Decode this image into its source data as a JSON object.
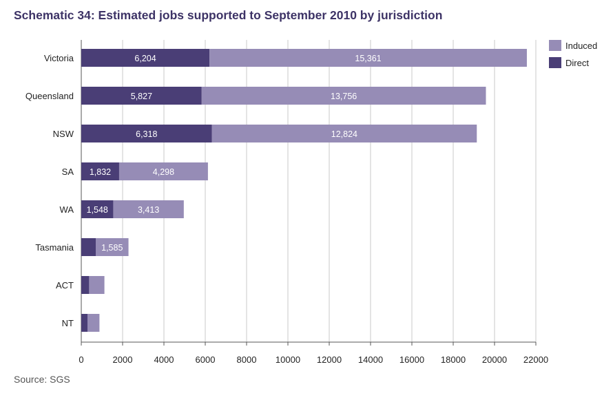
{
  "title": "Schematic 34: Estimated jobs supported to September 2010 by jurisdiction",
  "source": "Source: SGS",
  "colors": {
    "direct": "#4a3e76",
    "induced": "#968cb6",
    "grid": "#c8c8c8",
    "axis": "#555555"
  },
  "chart_data": {
    "type": "bar",
    "orientation": "horizontal",
    "stacked": true,
    "categories": [
      "Victoria",
      "Queensland",
      "NSW",
      "SA",
      "WA",
      "Tasmania",
      "ACT",
      "NT"
    ],
    "series": [
      {
        "name": "Direct",
        "values": [
          6204,
          5827,
          6318,
          1832,
          1548,
          700,
          380,
          300
        ],
        "labels": [
          "6,204",
          "5,827",
          "6,318",
          "1,832",
          "1,548",
          "",
          "",
          ""
        ]
      },
      {
        "name": "Induced",
        "values": [
          15361,
          13756,
          12824,
          4298,
          3413,
          1585,
          740,
          580
        ],
        "labels": [
          "15,361",
          "13,756",
          "12,824",
          "4,298",
          "3,413",
          "1,585",
          "",
          ""
        ]
      }
    ],
    "xlim": [
      0,
      22000
    ],
    "xticks": [
      0,
      2000,
      4000,
      6000,
      8000,
      10000,
      12000,
      14000,
      16000,
      18000,
      20000,
      22000
    ],
    "grid": true,
    "legend": {
      "position": "top-right",
      "order": [
        "Induced",
        "Direct"
      ]
    }
  }
}
